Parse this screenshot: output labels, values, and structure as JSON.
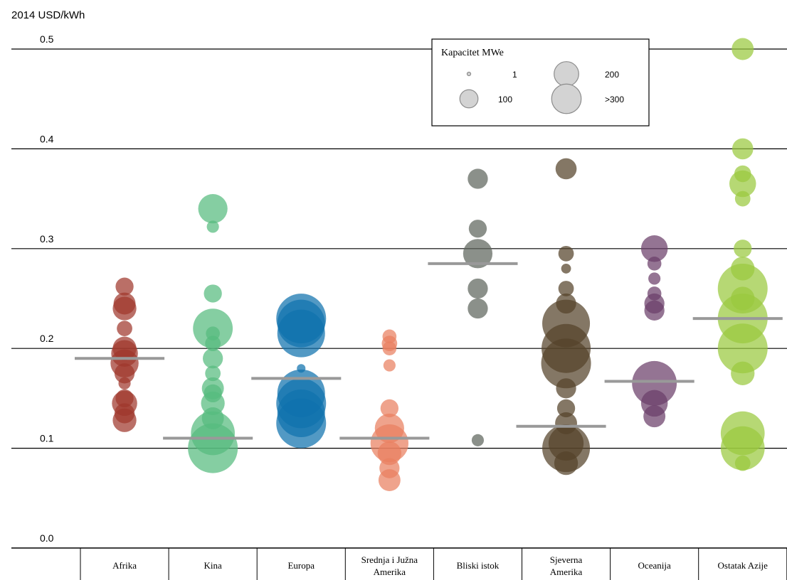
{
  "chart_data": {
    "type": "scatter",
    "ylabel": "2014 USD/kWh",
    "ylim": [
      0,
      0.5
    ],
    "yticks": [
      "0.0",
      "0.1",
      "0.2",
      "0.3",
      "0.4",
      "0.5"
    ],
    "grid": true,
    "categories": [
      "Afrika",
      "Kina",
      "Europa",
      "Srednja i Južna Amerika",
      "Bliski istok",
      "Sjeverna Amerika",
      "Oceanija",
      "Ostatak Azije"
    ],
    "legend": {
      "title": "Kapacitet MWe",
      "placement": "top-right",
      "sizes": [
        {
          "label": "1",
          "mwe": 1
        },
        {
          "label": "200",
          "mwe": 200
        },
        {
          "label": "100",
          "mwe": 100
        },
        {
          "label": ">300",
          "mwe": 300
        }
      ]
    },
    "colors": {
      "Afrika": "#a0382c",
      "Kina": "#56bb7e",
      "Europa": "#0f72ad",
      "Srednja i Južna Amerika": "#e98060",
      "Bliski istok": "#5e655d",
      "Sjeverna Amerika": "#54432a",
      "Oceanija": "#6b3f6a",
      "Ostatak Azije": "#9ac93f",
      "average_line": "#999999"
    },
    "averages": [
      0.19,
      0.11,
      0.17,
      0.11,
      0.285,
      0.122,
      0.167,
      0.23
    ],
    "series": [
      {
        "category": "Afrika",
        "points": [
          {
            "y": 0.262,
            "mwe": 30
          },
          {
            "y": 0.245,
            "mwe": 50
          },
          {
            "y": 0.24,
            "mwe": 60
          },
          {
            "y": 0.22,
            "mwe": 20
          },
          {
            "y": 0.2,
            "mwe": 60
          },
          {
            "y": 0.195,
            "mwe": 80
          },
          {
            "y": 0.185,
            "mwe": 90
          },
          {
            "y": 0.175,
            "mwe": 40
          },
          {
            "y": 0.165,
            "mwe": 10
          },
          {
            "y": 0.15,
            "mwe": 30
          },
          {
            "y": 0.145,
            "mwe": 70
          },
          {
            "y": 0.135,
            "mwe": 40
          },
          {
            "y": 0.128,
            "mwe": 60
          }
        ]
      },
      {
        "category": "Kina",
        "points": [
          {
            "y": 0.34,
            "mwe": 100
          },
          {
            "y": 0.322,
            "mwe": 10
          },
          {
            "y": 0.255,
            "mwe": 30
          },
          {
            "y": 0.22,
            "mwe": 200
          },
          {
            "y": 0.215,
            "mwe": 15
          },
          {
            "y": 0.205,
            "mwe": 20
          },
          {
            "y": 0.19,
            "mwe": 40
          },
          {
            "y": 0.175,
            "mwe": 20
          },
          {
            "y": 0.16,
            "mwe": 50
          },
          {
            "y": 0.155,
            "mwe": 30
          },
          {
            "y": 0.145,
            "mwe": 60
          },
          {
            "y": 0.13,
            "mwe": 50
          },
          {
            "y": 0.115,
            "mwe": 250
          },
          {
            "y": 0.1,
            "mwe": 330
          }
        ]
      },
      {
        "category": "Europa",
        "points": [
          {
            "y": 0.23,
            "mwe": 330
          },
          {
            "y": 0.225,
            "mwe": 300
          },
          {
            "y": 0.215,
            "mwe": 300
          },
          {
            "y": 0.18,
            "mwe": 3
          },
          {
            "y": 0.155,
            "mwe": 300
          },
          {
            "y": 0.145,
            "mwe": 330
          },
          {
            "y": 0.135,
            "mwe": 300
          },
          {
            "y": 0.125,
            "mwe": 330
          }
        ]
      },
      {
        "category": "Srednja i Južna Amerika",
        "points": [
          {
            "y": 0.212,
            "mwe": 15
          },
          {
            "y": 0.205,
            "mwe": 20
          },
          {
            "y": 0.2,
            "mwe": 15
          },
          {
            "y": 0.183,
            "mwe": 10
          },
          {
            "y": 0.14,
            "mwe": 30
          },
          {
            "y": 0.12,
            "mwe": 100
          },
          {
            "y": 0.105,
            "mwe": 180
          },
          {
            "y": 0.095,
            "mwe": 60
          },
          {
            "y": 0.08,
            "mwe": 40
          },
          {
            "y": 0.068,
            "mwe": 50
          }
        ]
      },
      {
        "category": "Bliski istok",
        "points": [
          {
            "y": 0.37,
            "mwe": 40
          },
          {
            "y": 0.32,
            "mwe": 30
          },
          {
            "y": 0.295,
            "mwe": 100
          },
          {
            "y": 0.26,
            "mwe": 40
          },
          {
            "y": 0.24,
            "mwe": 40
          },
          {
            "y": 0.108,
            "mwe": 10
          }
        ]
      },
      {
        "category": "Sjeverna Amerika",
        "points": [
          {
            "y": 0.38,
            "mwe": 45
          },
          {
            "y": 0.295,
            "mwe": 20
          },
          {
            "y": 0.28,
            "mwe": 5
          },
          {
            "y": 0.26,
            "mwe": 20
          },
          {
            "y": 0.245,
            "mwe": 40
          },
          {
            "y": 0.225,
            "mwe": 300
          },
          {
            "y": 0.2,
            "mwe": 320
          },
          {
            "y": 0.185,
            "mwe": 330
          },
          {
            "y": 0.16,
            "mwe": 40
          },
          {
            "y": 0.14,
            "mwe": 30
          },
          {
            "y": 0.125,
            "mwe": 50
          },
          {
            "y": 0.105,
            "mwe": 150
          },
          {
            "y": 0.1,
            "mwe": 300
          },
          {
            "y": 0.085,
            "mwe": 60
          }
        ]
      },
      {
        "category": "Oceanija",
        "points": [
          {
            "y": 0.3,
            "mwe": 80
          },
          {
            "y": 0.285,
            "mwe": 15
          },
          {
            "y": 0.27,
            "mwe": 10
          },
          {
            "y": 0.255,
            "mwe": 15
          },
          {
            "y": 0.245,
            "mwe": 40
          },
          {
            "y": 0.238,
            "mwe": 40
          },
          {
            "y": 0.165,
            "mwe": 260
          },
          {
            "y": 0.145,
            "mwe": 80
          },
          {
            "y": 0.132,
            "mwe": 50
          }
        ]
      },
      {
        "category": "Ostatak Azije",
        "points": [
          {
            "y": 0.5,
            "mwe": 50
          },
          {
            "y": 0.4,
            "mwe": 45
          },
          {
            "y": 0.375,
            "mwe": 25
          },
          {
            "y": 0.365,
            "mwe": 80
          },
          {
            "y": 0.35,
            "mwe": 20
          },
          {
            "y": 0.3,
            "mwe": 30
          },
          {
            "y": 0.28,
            "mwe": 60
          },
          {
            "y": 0.26,
            "mwe": 330
          },
          {
            "y": 0.25,
            "mwe": 60
          },
          {
            "y": 0.23,
            "mwe": 330
          },
          {
            "y": 0.2,
            "mwe": 330
          },
          {
            "y": 0.175,
            "mwe": 60
          },
          {
            "y": 0.115,
            "mwe": 250
          },
          {
            "y": 0.1,
            "mwe": 250
          },
          {
            "y": 0.085,
            "mwe": 20
          }
        ]
      }
    ]
  }
}
